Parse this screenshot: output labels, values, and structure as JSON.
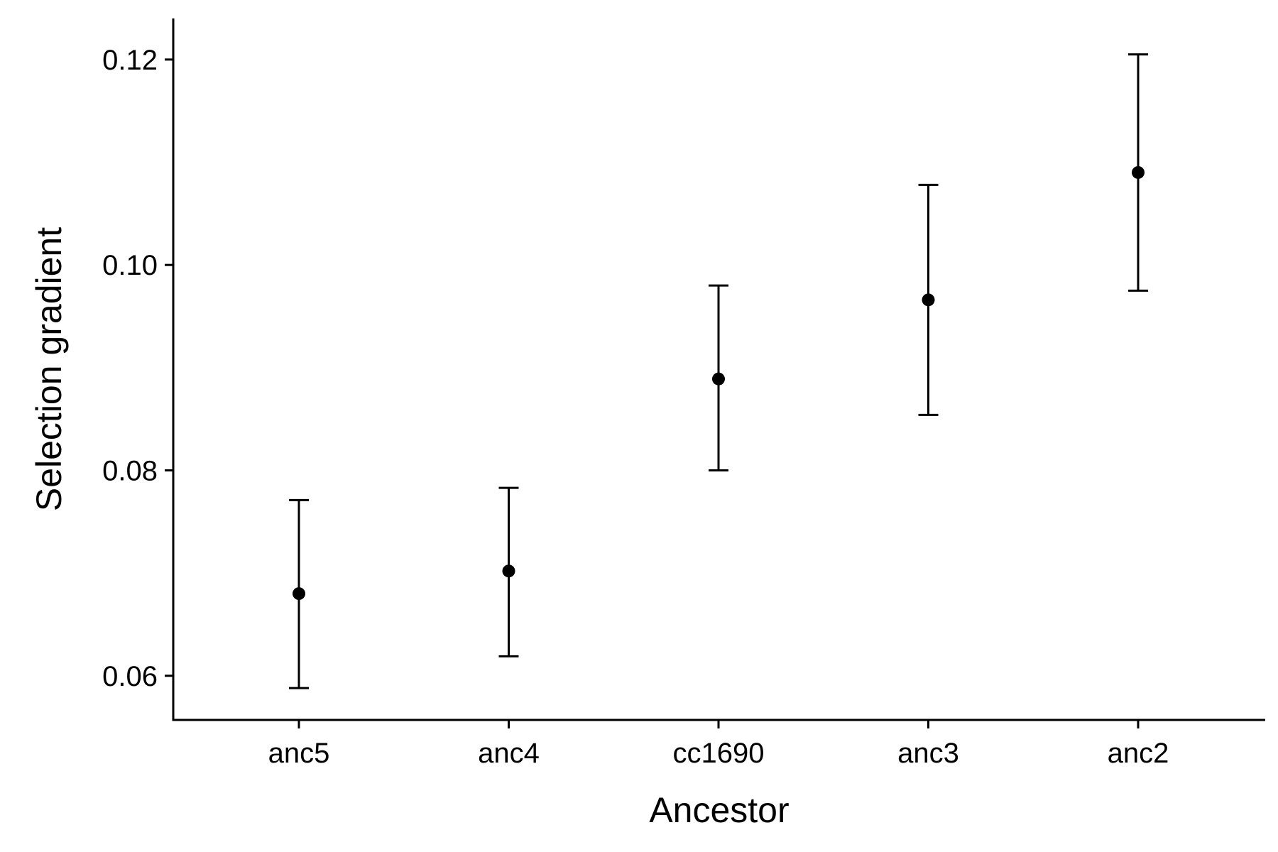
{
  "chart_data": {
    "type": "scatter",
    "title": "",
    "xlabel": "Ancestor",
    "ylabel": "Selection gradient",
    "categories": [
      "anc5",
      "anc4",
      "cc1690",
      "anc3",
      "anc2"
    ],
    "values": [
      0.068,
      0.0702,
      0.0889,
      0.0966,
      0.109
    ],
    "lower": [
      0.0588,
      0.0619,
      0.08,
      0.0854,
      0.0975
    ],
    "upper": [
      0.0771,
      0.0783,
      0.098,
      0.1078,
      0.1205
    ],
    "ylim": [
      0.0557,
      0.124
    ],
    "yticks": [
      "0.06",
      "0.08",
      "0.10",
      "0.12"
    ],
    "ytick_values": [
      0.06,
      0.08,
      0.1,
      0.12
    ],
    "grid": false,
    "legend": "none",
    "colors": {
      "axis": "#000000",
      "points": "#000000"
    }
  }
}
